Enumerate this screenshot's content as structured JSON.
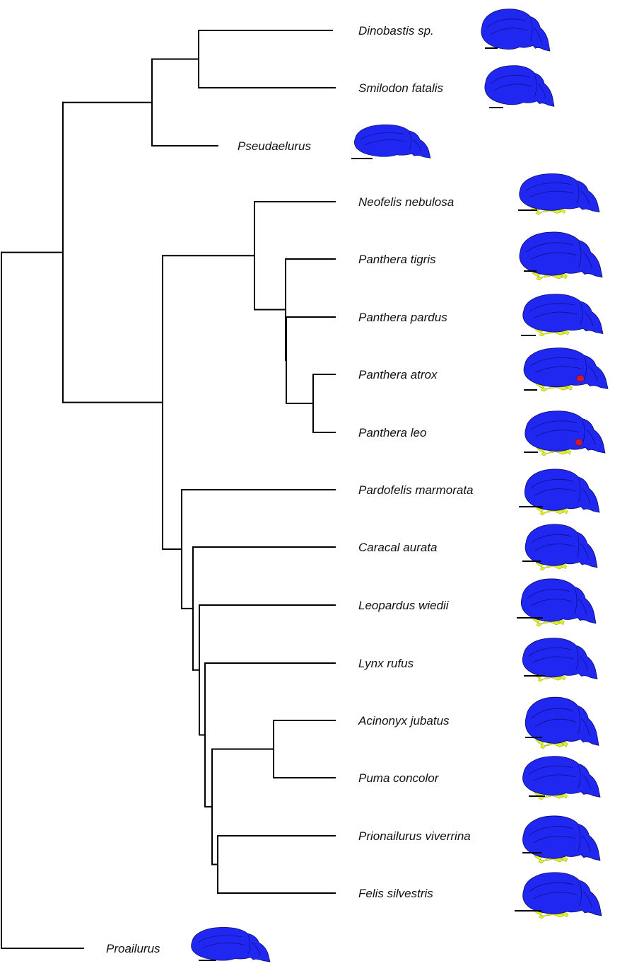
{
  "colors": {
    "brain": "#1f27f0",
    "nerve": "#e3f21f",
    "highlight": "#d4182c",
    "branch": "#000000"
  },
  "taxa": [
    {
      "id": "dinobastis",
      "name": "Dinobastis sp.",
      "nerves": false,
      "red": false
    },
    {
      "id": "smilodon",
      "name": "Smilodon fatalis",
      "nerves": false,
      "red": false
    },
    {
      "id": "pseudaelurus",
      "name": "Pseudaelurus",
      "nerves": false,
      "red": false
    },
    {
      "id": "neofelis",
      "name": "Neofelis nebulosa",
      "nerves": true,
      "red": false
    },
    {
      "id": "tigris",
      "name": "Panthera tigris",
      "nerves": true,
      "red": false
    },
    {
      "id": "pardus",
      "name": "Panthera pardus",
      "nerves": true,
      "red": false
    },
    {
      "id": "atrox",
      "name": "Panthera atrox",
      "nerves": true,
      "red": true
    },
    {
      "id": "leo",
      "name": "Panthera leo",
      "nerves": true,
      "red": true
    },
    {
      "id": "pardofelis",
      "name": "Pardofelis marmorata",
      "nerves": true,
      "red": false
    },
    {
      "id": "caracal",
      "name": "Caracal aurata",
      "nerves": true,
      "red": false
    },
    {
      "id": "leopardus",
      "name": "Leopardus wiedii",
      "nerves": true,
      "red": false
    },
    {
      "id": "lynx",
      "name": "Lynx rufus",
      "nerves": true,
      "red": false
    },
    {
      "id": "acinonyx",
      "name": "Acinonyx jubatus",
      "nerves": true,
      "red": false
    },
    {
      "id": "puma",
      "name": "Puma concolor",
      "nerves": true,
      "red": false
    },
    {
      "id": "prionailurus",
      "name": "Prionailurus viverrina",
      "nerves": true,
      "red": false
    },
    {
      "id": "felis",
      "name": "Felis silvestris",
      "nerves": true,
      "red": false
    },
    {
      "id": "proailurus",
      "name": "Proailurus",
      "nerves": false,
      "red": false
    }
  ],
  "tree": "(((((dinobastis,smilodon),pseudaelurus),((neofelis,(tigris,(pardus,(atrox,leo)))),(pardofelis,(caracal,(leopardus,(lynx,((acinonyx,puma),(prionailurus,felis)))))))),proailurus)"
}
